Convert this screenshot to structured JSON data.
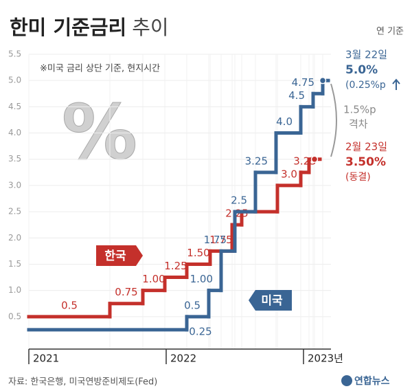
{
  "chart_data": {
    "type": "step",
    "title": "한미 기준금리",
    "title_suffix": "추이",
    "unit_note": "연 기준",
    "note": "※미국 금리 상단 기준, 현지시간",
    "icon_text": "%",
    "source": "자료: 한국은행, 미국연방준비제도(Fed)",
    "logo": "연합뉴스",
    "xlim": [
      2021,
      2023.2
    ],
    "xticks": [
      2021,
      2022,
      {
        "value": 2023,
        "label": "2023년"
      }
    ],
    "ylim": [
      0,
      5.5
    ],
    "yticks": [
      0.5,
      {
        "value": 1,
        "label": "1.0"
      },
      1.5,
      {
        "value": 2,
        "label": "2.0"
      },
      2.5,
      {
        "value": 3,
        "label": "3.0"
      },
      3.5,
      {
        "value": 4,
        "label": "4.0"
      },
      4.5,
      {
        "value": 5,
        "label": "5.0"
      },
      5.5
    ],
    "grid": true,
    "series": [
      {
        "name": "한국",
        "color": "#c4302b",
        "x": [
          2021.0,
          2021.59,
          2021.83,
          2021.99,
          2022.15,
          2022.32,
          2022.48,
          2022.55,
          2022.81,
          2022.98,
          2023.04,
          2023.08
        ],
        "values": [
          0.5,
          0.75,
          1,
          1.25,
          1.5,
          1.75,
          2.25,
          2.5,
          3,
          3.25,
          3.5,
          3.5
        ],
        "value_labels": [
          "0.5",
          "0.75",
          "1.00",
          "1.25",
          "1.50",
          "1.75",
          "2.25",
          null,
          "3.0",
          "3.25",
          null,
          null
        ]
      },
      {
        "name": "미국",
        "color": "#3a6594",
        "x": [
          2021.0,
          2022.15,
          2022.31,
          2022.4,
          2022.5,
          2022.65,
          2022.8,
          2022.98,
          2023.07,
          2023.14
        ],
        "values": [
          0.25,
          0.5,
          1,
          1.75,
          2.5,
          3.25,
          4,
          4.5,
          4.75,
          5
        ],
        "value_labels": [
          "0.25",
          "0.5",
          "1.00",
          "1.75",
          "2.5",
          "3.25",
          "4.0",
          "4.5",
          "4.75",
          null
        ]
      }
    ],
    "annotations": {
      "us_date": "3월 22일",
      "us_rate": "5.0%",
      "us_change": "(0.25%p",
      "kr_date": "2월 23일",
      "kr_rate": "3.50%",
      "kr_change": "(동결)",
      "gap": "1.5%p",
      "gap_label": "격차"
    }
  }
}
